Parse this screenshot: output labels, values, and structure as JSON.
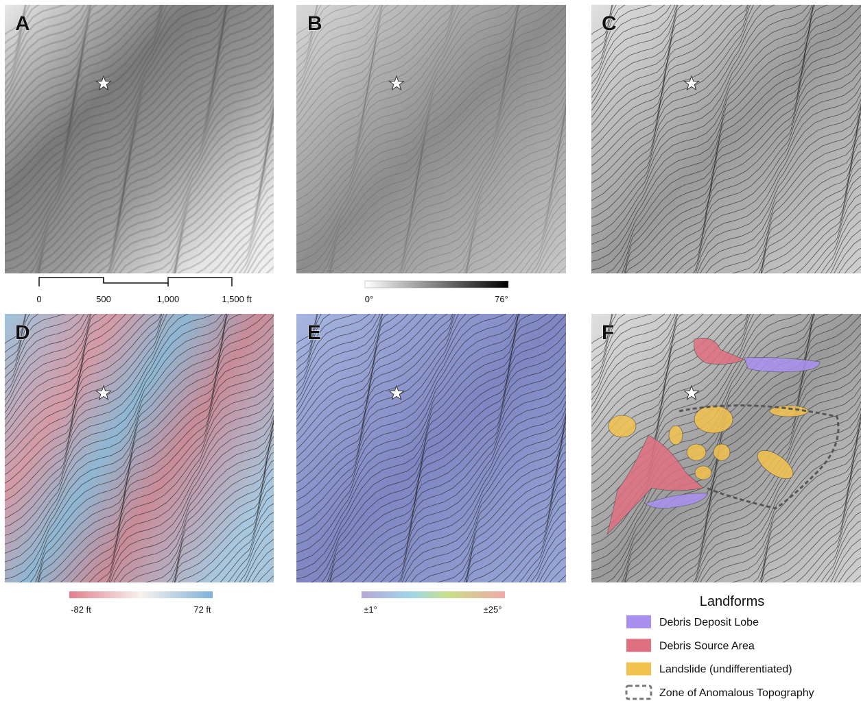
{
  "panels": [
    {
      "label": "A"
    },
    {
      "label": "B"
    },
    {
      "label": "C"
    },
    {
      "label": "D"
    },
    {
      "label": "E"
    },
    {
      "label": "F"
    }
  ],
  "scale_bar": {
    "labels": [
      "0",
      "500",
      "1,000",
      "1,500 ft"
    ]
  },
  "slope_colorbar": {
    "min_label": "0°",
    "max_label": "76°"
  },
  "elevation_colorbar": {
    "min_label": "-82 ft",
    "max_label": "72 ft"
  },
  "curvature_colorbar": {
    "min_label": "±1°",
    "max_label": "±25°"
  },
  "legend": {
    "title": "Landforms",
    "items": [
      {
        "label": "Debris Deposit Lobe",
        "color": "#a98ff0"
      },
      {
        "label": "Debris Source Area",
        "color": "#e07080"
      },
      {
        "label": "Landslide (undifferentiated)",
        "color": "#f3c24e"
      },
      {
        "label": "Zone of Anomalous Topography",
        "color": "#777777"
      }
    ]
  }
}
